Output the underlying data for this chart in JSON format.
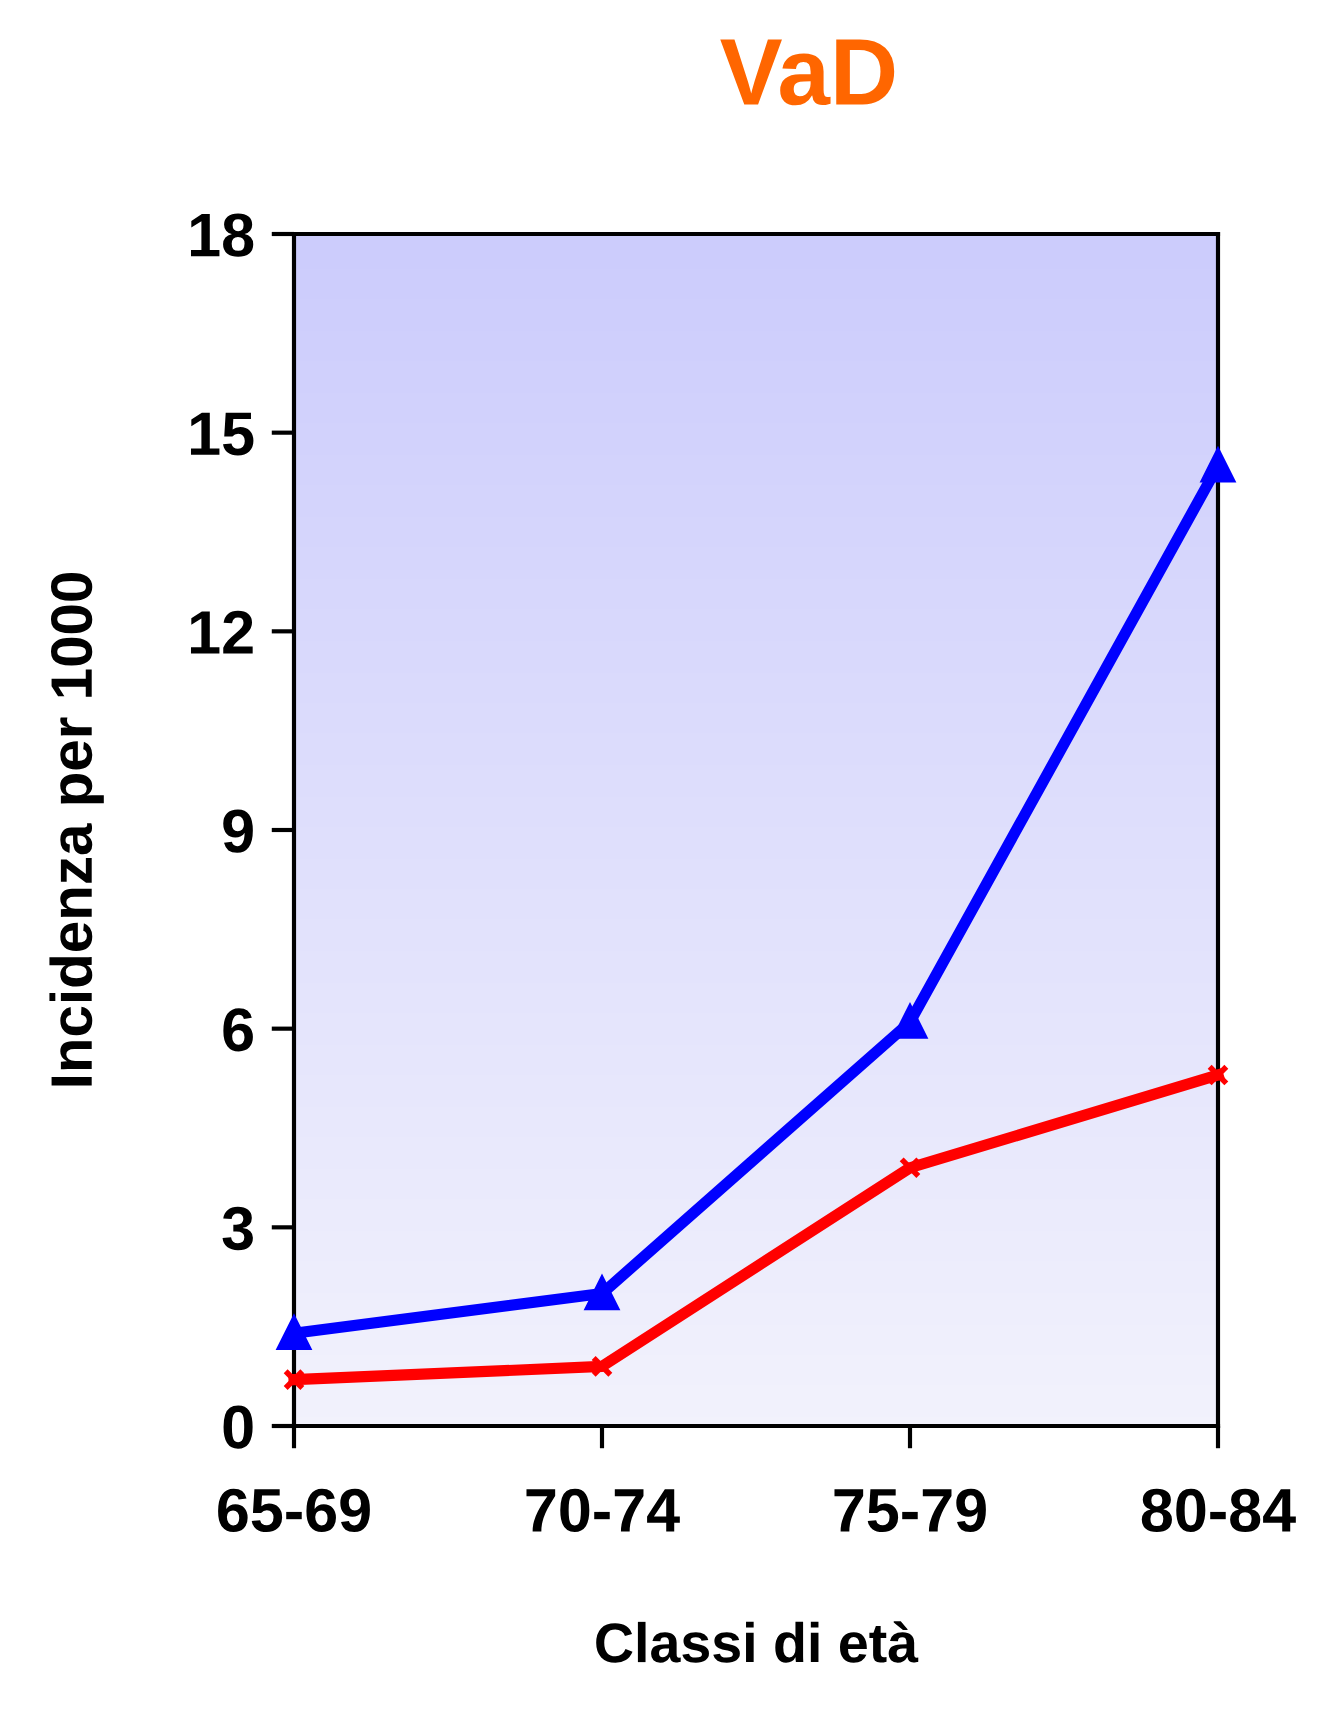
{
  "chart_data": {
    "type": "line",
    "title": "VaD",
    "xlabel": "Classi di età",
    "ylabel": "Incidenza per 1000",
    "categories": [
      "65-69",
      "70-74",
      "75-79",
      "80-84"
    ],
    "series": [
      {
        "color": "#0000ff",
        "marker": "triangle",
        "values": [
          1.4,
          2.0,
          6.1,
          14.5
        ]
      },
      {
        "color": "#ff0000",
        "marker": "cross",
        "values": [
          0.7,
          0.9,
          3.9,
          5.3
        ]
      }
    ],
    "ylim": [
      0,
      18
    ],
    "yticks": [
      0,
      3,
      6,
      9,
      12,
      15,
      18
    ],
    "grid": false,
    "line_style": "solid"
  }
}
